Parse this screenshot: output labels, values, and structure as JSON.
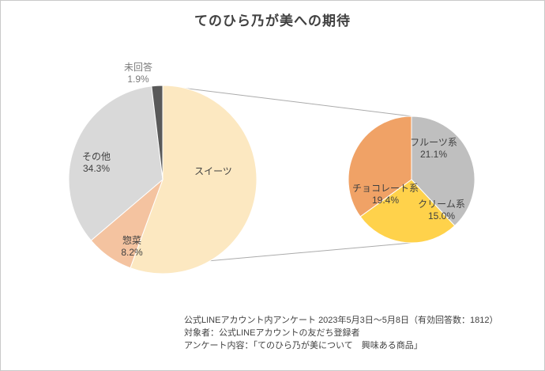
{
  "title": "てのひら乃が美への期待",
  "footer": {
    "lines": [
      "公式LINEアカウント内アンケート  2023年5月3日～5月8日（有効回答数：1812）",
      "対象者：公式LINEアカウントの友だち登録者",
      "アンケート内容：「てのひら乃が美について　興味ある商品」"
    ]
  },
  "chart_data": {
    "type": "pie",
    "title": "てのひら乃が美への期待",
    "layout_hint": "pie-of-pie, main pie left with breakdown pie of sweets on right, connector lines between them, labels inside slices",
    "main_pie": {
      "slices": [
        {
          "id": "sweets",
          "label": "スイーツ",
          "pct_label": "",
          "value": 55.6,
          "color": "#FCE8C1"
        },
        {
          "id": "sozai",
          "label": "惣菜",
          "pct_label": "8.2%",
          "value": 8.2,
          "color": "#F4C3A0"
        },
        {
          "id": "other",
          "label": "その他",
          "pct_label": "34.3%",
          "value": 34.3,
          "color": "#D9D9D9"
        },
        {
          "id": "no-answer",
          "label": "未回答",
          "pct_label": "1.9%",
          "value": 1.9,
          "color": "#595959"
        }
      ]
    },
    "secondary_pie": {
      "slices": [
        {
          "id": "fruit",
          "label": "フルーツ系",
          "pct_label": "21.1%",
          "value": 21.1,
          "color": "#BFBFBF"
        },
        {
          "id": "cream",
          "label": "クリーム系",
          "pct_label": "15.0%",
          "value": 15.0,
          "color": "#FFD24B"
        },
        {
          "id": "chocolate",
          "label": "チョコレート系",
          "pct_label": "19.4%",
          "value": 19.4,
          "color": "#F0A266"
        }
      ]
    },
    "colors": {
      "connector_line": "#ABABAB",
      "label_text": "#404040",
      "muted_label_text": "#7A7A7A"
    }
  }
}
